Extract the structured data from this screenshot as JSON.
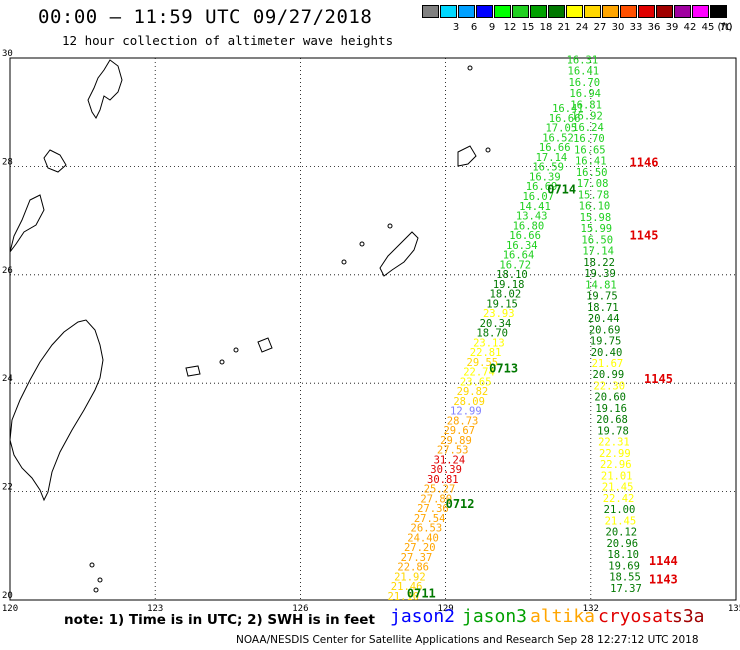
{
  "title": "00:00 – 11:59 UTC 09/27/2018",
  "subtitle": "12 hour collection of altimeter wave heights",
  "legend": {
    "unit_label": "(ft)",
    "swatches": [
      {
        "color": "#808080",
        "label": ""
      },
      {
        "color": "#00d8ff",
        "label": "3"
      },
      {
        "color": "#00a0ff",
        "label": "6"
      },
      {
        "color": "#0000ff",
        "label": "9"
      },
      {
        "color": "#00ff00",
        "label": "12"
      },
      {
        "color": "#20d020",
        "label": "15"
      },
      {
        "color": "#00a000",
        "label": "18"
      },
      {
        "color": "#007800",
        "label": "21"
      },
      {
        "color": "#ffff00",
        "label": "24"
      },
      {
        "color": "#ffd700",
        "label": "27"
      },
      {
        "color": "#ffa500",
        "label": "30"
      },
      {
        "color": "#ff5000",
        "label": "33"
      },
      {
        "color": "#e00000",
        "label": "36"
      },
      {
        "color": "#a00000",
        "label": "39"
      },
      {
        "color": "#a000a0",
        "label": "42"
      },
      {
        "color": "#ff00ff",
        "label": "45"
      },
      {
        "color": "#000000",
        "label": "70"
      }
    ]
  },
  "axes": {
    "x_ticks": [
      "120",
      "123",
      "126",
      "129",
      "132",
      "135"
    ],
    "y_ticks": [
      "30",
      "28",
      "26",
      "24",
      "22",
      "20"
    ],
    "lon_range": [
      120,
      135
    ],
    "lat_range": [
      20,
      30
    ]
  },
  "tracks": [
    {
      "label": "0713",
      "color": "#007800",
      "lon": 129.9,
      "lat": 24.2
    },
    {
      "label": "0712",
      "color": "#007800",
      "lon": 129.0,
      "lat": 21.7
    },
    {
      "label": "0711",
      "color": "#007800",
      "lon": 128.2,
      "lat": 20.05
    },
    {
      "label": "0714",
      "color": "#007800",
      "lon": 131.1,
      "lat": 27.5
    },
    {
      "label": "1146",
      "color": "#e00000",
      "lon": 132.8,
      "lat": 28.0
    },
    {
      "label": "1145",
      "color": "#e00000",
      "lon": 132.8,
      "lat": 26.65
    },
    {
      "label": "1145",
      "color": "#e00000",
      "lon": 133.1,
      "lat": 24.0
    },
    {
      "label": "1144",
      "color": "#e00000",
      "lon": 133.2,
      "lat": 20.65
    },
    {
      "label": "1143",
      "color": "#e00000",
      "lon": 133.2,
      "lat": 20.3
    }
  ],
  "wave_values_west": [
    {
      "v": "16.41",
      "c": "#20d020"
    },
    {
      "v": "16.66",
      "c": "#20d020"
    },
    {
      "v": "17.05",
      "c": "#20d020"
    },
    {
      "v": "16.52",
      "c": "#20d020"
    },
    {
      "v": "16.66",
      "c": "#20d020"
    },
    {
      "v": "17.14",
      "c": "#20d020"
    },
    {
      "v": "16.59",
      "c": "#20d020"
    },
    {
      "v": "16.39",
      "c": "#20d020"
    },
    {
      "v": "16.69",
      "c": "#20d020"
    },
    {
      "v": "16.07",
      "c": "#20d020"
    },
    {
      "v": "14.41",
      "c": "#20d020"
    },
    {
      "v": "13.43",
      "c": "#20d020"
    },
    {
      "v": "16.80",
      "c": "#20d020"
    },
    {
      "v": "16.66",
      "c": "#20d020"
    },
    {
      "v": "16.34",
      "c": "#20d020"
    },
    {
      "v": "16.64",
      "c": "#20d020"
    },
    {
      "v": "16.72",
      "c": "#20d020"
    },
    {
      "v": "18.10",
      "c": "#007800"
    },
    {
      "v": "19.18",
      "c": "#007800"
    },
    {
      "v": "18.02",
      "c": "#007800"
    },
    {
      "v": "19.15",
      "c": "#007800"
    },
    {
      "v": "23.93",
      "c": "#ffff00"
    },
    {
      "v": "20.34",
      "c": "#007800"
    },
    {
      "v": "18.70",
      "c": "#007800"
    },
    {
      "v": "23.13",
      "c": "#ffff00"
    },
    {
      "v": "22.81",
      "c": "#ffff00"
    },
    {
      "v": "29.55",
      "c": "#ffd700"
    },
    {
      "v": "22.74",
      "c": "#ffff00"
    },
    {
      "v": "23.65",
      "c": "#ffff00"
    },
    {
      "v": "29.82",
      "c": "#ffd700"
    },
    {
      "v": "28.09",
      "c": "#ffd700"
    },
    {
      "v": "12.99",
      "c": "#8080ff"
    },
    {
      "v": "28.73",
      "c": "#ffa500"
    },
    {
      "v": "29.67",
      "c": "#ffa500"
    },
    {
      "v": "29.89",
      "c": "#ffa500"
    },
    {
      "v": "27.53",
      "c": "#ffa500"
    },
    {
      "v": "31.24",
      "c": "#e00000"
    },
    {
      "v": "30.39",
      "c": "#e00000"
    },
    {
      "v": "30.81",
      "c": "#e00000"
    },
    {
      "v": "25.27",
      "c": "#ffa500"
    },
    {
      "v": "27.80",
      "c": "#ffa500"
    },
    {
      "v": "27.36",
      "c": "#ffa500"
    },
    {
      "v": "27.54",
      "c": "#ffa500"
    },
    {
      "v": "26.53",
      "c": "#ffa500"
    },
    {
      "v": "24.40",
      "c": "#ffa500"
    },
    {
      "v": "27.20",
      "c": "#ffa500"
    },
    {
      "v": "27.37",
      "c": "#ffa500"
    },
    {
      "v": "22.86",
      "c": "#ffa500"
    },
    {
      "v": "21.92",
      "c": "#ffd700"
    },
    {
      "v": "21.46",
      "c": "#ffd700"
    },
    {
      "v": "21.10",
      "c": "#ffd700"
    }
  ],
  "wave_values_east": [
    {
      "v": "16.31",
      "c": "#20d020"
    },
    {
      "v": "16.41",
      "c": "#20d020"
    },
    {
      "v": "16.70",
      "c": "#20d020"
    },
    {
      "v": "16.94",
      "c": "#20d020"
    },
    {
      "v": "16.81",
      "c": "#20d020"
    },
    {
      "v": "16.92",
      "c": "#20d020"
    },
    {
      "v": "16.24",
      "c": "#20d020"
    },
    {
      "v": "16.70",
      "c": "#20d020"
    },
    {
      "v": "16.65",
      "c": "#20d020"
    },
    {
      "v": "16.41",
      "c": "#20d020"
    },
    {
      "v": "16.50",
      "c": "#20d020"
    },
    {
      "v": "17.08",
      "c": "#20d020"
    },
    {
      "v": "15.78",
      "c": "#20d020"
    },
    {
      "v": "16.10",
      "c": "#20d020"
    },
    {
      "v": "15.98",
      "c": "#20d020"
    },
    {
      "v": "15.99",
      "c": "#20d020"
    },
    {
      "v": "16.50",
      "c": "#20d020"
    },
    {
      "v": "17.14",
      "c": "#20d020"
    },
    {
      "v": "18.22",
      "c": "#007800"
    },
    {
      "v": "19.39",
      "c": "#007800"
    },
    {
      "v": "14.81",
      "c": "#20d020"
    },
    {
      "v": "19.75",
      "c": "#007800"
    },
    {
      "v": "18.71",
      "c": "#007800"
    },
    {
      "v": "20.44",
      "c": "#007800"
    },
    {
      "v": "20.69",
      "c": "#007800"
    },
    {
      "v": "19.75",
      "c": "#007800"
    },
    {
      "v": "20.40",
      "c": "#007800"
    },
    {
      "v": "21.67",
      "c": "#ffff00"
    },
    {
      "v": "20.99",
      "c": "#007800"
    },
    {
      "v": "22.30",
      "c": "#ffff00"
    },
    {
      "v": "20.60",
      "c": "#007800"
    },
    {
      "v": "19.16",
      "c": "#007800"
    },
    {
      "v": "20.68",
      "c": "#007800"
    },
    {
      "v": "19.78",
      "c": "#007800"
    },
    {
      "v": "22.31",
      "c": "#ffff00"
    },
    {
      "v": "22.99",
      "c": "#ffff00"
    },
    {
      "v": "22.96",
      "c": "#ffff00"
    },
    {
      "v": "21.01",
      "c": "#ffff00"
    },
    {
      "v": "21.45",
      "c": "#ffff00"
    },
    {
      "v": "22.42",
      "c": "#ffff00"
    },
    {
      "v": "21.00",
      "c": "#007800"
    },
    {
      "v": "21.45",
      "c": "#ffff00"
    },
    {
      "v": "20.12",
      "c": "#007800"
    },
    {
      "v": "20.96",
      "c": "#007800"
    },
    {
      "v": "18.10",
      "c": "#007800"
    },
    {
      "v": "19.69",
      "c": "#007800"
    },
    {
      "v": "18.55",
      "c": "#007800"
    },
    {
      "v": "17.37",
      "c": "#007800"
    }
  ],
  "note": "note: 1) Time is in UTC; 2) SWH is in feet",
  "satellites": [
    {
      "name": "jason2",
      "color": "#0000ff"
    },
    {
      "name": "jason3",
      "color": "#00a000"
    },
    {
      "name": "altika",
      "color": "#ffa500"
    },
    {
      "name": "cryosat",
      "color": "#e00000"
    },
    {
      "name": "s3a",
      "color": "#a00000"
    }
  ],
  "credit": "NOAA/NESDIS Center for Satellite Applications and Research    Sep 28 12:27:12 UTC 2018"
}
